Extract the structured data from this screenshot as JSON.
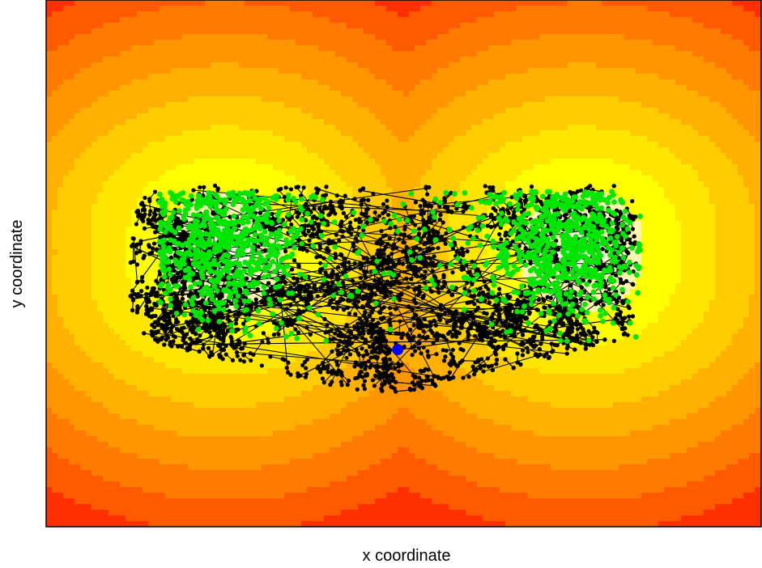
{
  "chart_data": {
    "type": "scatter",
    "title": "",
    "xlabel": "x coordinate",
    "ylabel": "y coordinate",
    "xlim": [
      -3,
      3
    ],
    "ylim": [
      -2.2,
      2.2
    ],
    "grid": false,
    "legend": "none",
    "background": {
      "kind": "filled-contour",
      "description_levels": 9,
      "centers": [
        [
          -1.5,
          0.1
        ],
        [
          1.5,
          0.1
        ]
      ],
      "palette": [
        "#fffbe8",
        "#fff7b0",
        "#ffff00",
        "#ffe600",
        "#ffcc00",
        "#ffb000",
        "#ff9600",
        "#ff7a00",
        "#ff5a00",
        "#ff3000"
      ]
    },
    "series": [
      {
        "role": "trajectory",
        "color": "#000000",
        "marker": "dot",
        "connected": true,
        "cloud": {
          "x_range": [
            -2.3,
            1.95
          ],
          "y_range": [
            -1.1,
            0.65
          ],
          "points": 5000
        }
      },
      {
        "role": "samples",
        "color": "#00e600",
        "marker": "dot",
        "clusters": [
          {
            "center": [
              -1.5,
              0.15
            ],
            "spread": [
              0.3,
              0.3
            ],
            "points": 650
          },
          {
            "center": [
              1.35,
              0.15
            ],
            "spread": [
              0.3,
              0.3
            ],
            "points": 650
          },
          {
            "center": [
              0.0,
              0.1
            ],
            "spread": [
              0.8,
              0.35
            ],
            "points": 120
          }
        ]
      },
      {
        "role": "start",
        "color": "#0000ff",
        "marker": "circle",
        "points": [
          [
            -0.05,
            -0.72
          ]
        ]
      }
    ]
  }
}
